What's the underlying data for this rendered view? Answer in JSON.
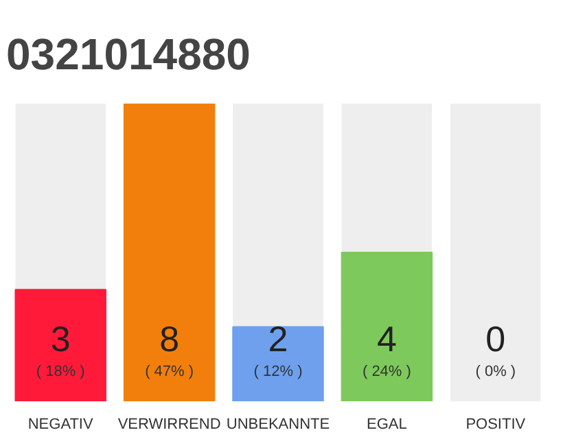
{
  "chart_data": {
    "type": "bar",
    "title": "0321014880",
    "categories": [
      "NEGATIV",
      "VERWIRREND",
      "UNBEKANNTE",
      "EGAL",
      "POSITIV"
    ],
    "values": [
      3,
      8,
      2,
      4,
      0
    ],
    "colors": [
      "#ff1a3a",
      "#f27f0c",
      "#6ea0ee",
      "#7ec95c",
      "#eeeeee"
    ],
    "data_labels": true,
    "annotations": [
      "( 18% )",
      "( 47% )",
      "( 12% )",
      "( 24% )",
      "( 0% )"
    ],
    "grid": false
  }
}
